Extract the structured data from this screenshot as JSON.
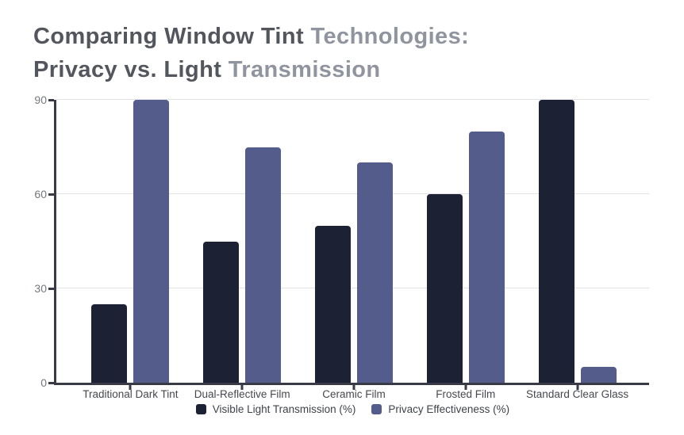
{
  "title": {
    "line1": {
      "primary": "Comparing Window Tint",
      "secondary": "Technologies:"
    },
    "line2": {
      "primary": "Privacy vs. Light",
      "secondary": "Transmission"
    },
    "primary_color": "#53565d",
    "secondary_color": "#8f949e"
  },
  "chart_data": {
    "type": "bar",
    "categories": [
      "Traditional Dark Tint",
      "Dual-Reflective Film",
      "Ceramic Film",
      "Frosted Film",
      "Standard Clear Glass"
    ],
    "series": [
      {
        "name": "Visible Light Transmission (%)",
        "color": "#1d2134",
        "values": [
          25,
          45,
          50,
          60,
          90
        ]
      },
      {
        "name": "Privacy Effectiveness (%)",
        "color": "#545c8c",
        "values": [
          90,
          75,
          70,
          80,
          5
        ]
      }
    ],
    "yticks": [
      0,
      30,
      60,
      90
    ],
    "ylim": [
      0,
      90
    ],
    "grid": true,
    "legend_position": "bottom",
    "axis_color": "#383b45",
    "grid_color": "#e2e2e6",
    "tick_label_color": "#75787e",
    "category_label_color": "#45484f",
    "legend_text_color": "#3e424a"
  }
}
